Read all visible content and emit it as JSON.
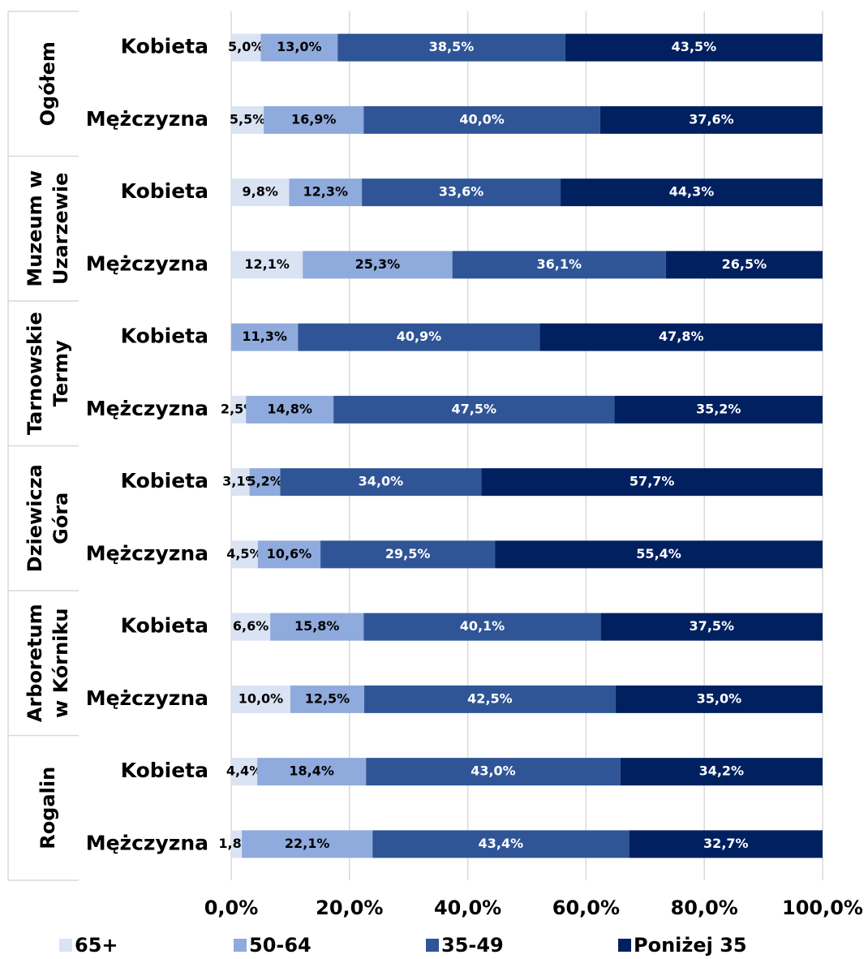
{
  "chart_data": {
    "type": "stacked-bar-horizontal",
    "groups": [
      {
        "label": [
          "Ogółem"
        ],
        "categories": [
          "Kobieta",
          "Mężczyzna"
        ]
      },
      {
        "label": [
          "Muzeum w",
          "Uzarzewie"
        ],
        "categories": [
          "Kobieta",
          "Mężczyzna"
        ]
      },
      {
        "label": [
          "Tarnowskie",
          "Termy"
        ],
        "categories": [
          "Kobieta",
          "Mężczyzna"
        ]
      },
      {
        "label": [
          "Dziewicza",
          "Góra"
        ],
        "categories": [
          "Kobieta",
          "Mężczyzna"
        ]
      },
      {
        "label": [
          "Arboretum",
          "w Kórniku"
        ],
        "categories": [
          "Kobieta",
          "Mężczyzna"
        ]
      },
      {
        "label": [
          "Rogalin"
        ],
        "categories": [
          "Kobieta",
          "Mężczyzna"
        ]
      }
    ],
    "series": [
      {
        "name": "65+",
        "color": "#dae3f3",
        "label_color": "#000000",
        "values": [
          5.0,
          5.5,
          9.8,
          12.1,
          null,
          2.5,
          3.1,
          4.5,
          6.6,
          10.0,
          4.4,
          1.8
        ],
        "value_labels": [
          "5,0%",
          "5,5%",
          "9,8%",
          "12,1%",
          null,
          "2,5%",
          "3,1%",
          "4,5%",
          "6,6%",
          "10,0%",
          "4,4%",
          "1,8%"
        ]
      },
      {
        "name": "50-64",
        "color": "#8faadc",
        "label_color": "#000000",
        "values": [
          13.0,
          16.9,
          12.3,
          25.3,
          11.3,
          14.8,
          5.2,
          10.6,
          15.8,
          12.5,
          18.4,
          22.1
        ],
        "value_labels": [
          "13,0%",
          "16,9%",
          "12,3%",
          "25,3%",
          "11,3%",
          "14,8%",
          "5,2%",
          "10,6%",
          "15,8%",
          "12,5%",
          "18,4%",
          "22,1%"
        ]
      },
      {
        "name": "35-49",
        "color": "#2f5597",
        "label_color": "#ffffff",
        "values": [
          38.5,
          40.0,
          33.6,
          36.1,
          40.9,
          47.5,
          34.0,
          29.5,
          40.1,
          42.5,
          43.0,
          43.4
        ],
        "value_labels": [
          "38,5%",
          "40,0%",
          "33,6%",
          "36,1%",
          "40,9%",
          "47,5%",
          "34,0%",
          "29,5%",
          "40,1%",
          "42,5%",
          "43,0%",
          "43,4%"
        ]
      },
      {
        "name": "Poniżej 35",
        "color": "#002060",
        "label_color": "#ffffff",
        "values": [
          43.5,
          37.6,
          44.3,
          26.5,
          47.8,
          35.2,
          57.7,
          55.4,
          37.5,
          35.0,
          34.2,
          32.7
        ],
        "value_labels": [
          "43,5%",
          "37,6%",
          "44,3%",
          "26,5%",
          "47,8%",
          "35,2%",
          "57,7%",
          "55,4%",
          "37,5%",
          "35,0%",
          "34,2%",
          "32,7%"
        ]
      }
    ],
    "xlim": [
      0,
      100
    ],
    "xticks": [
      {
        "value": 0,
        "label": "0,0%"
      },
      {
        "value": 20,
        "label": "20,0%"
      },
      {
        "value": 40,
        "label": "40,0%"
      },
      {
        "value": 60,
        "label": "60,0%"
      },
      {
        "value": 80,
        "label": "80,0%"
      },
      {
        "value": 100,
        "label": "100,0%"
      }
    ],
    "grid": true,
    "legend": "bottom"
  }
}
